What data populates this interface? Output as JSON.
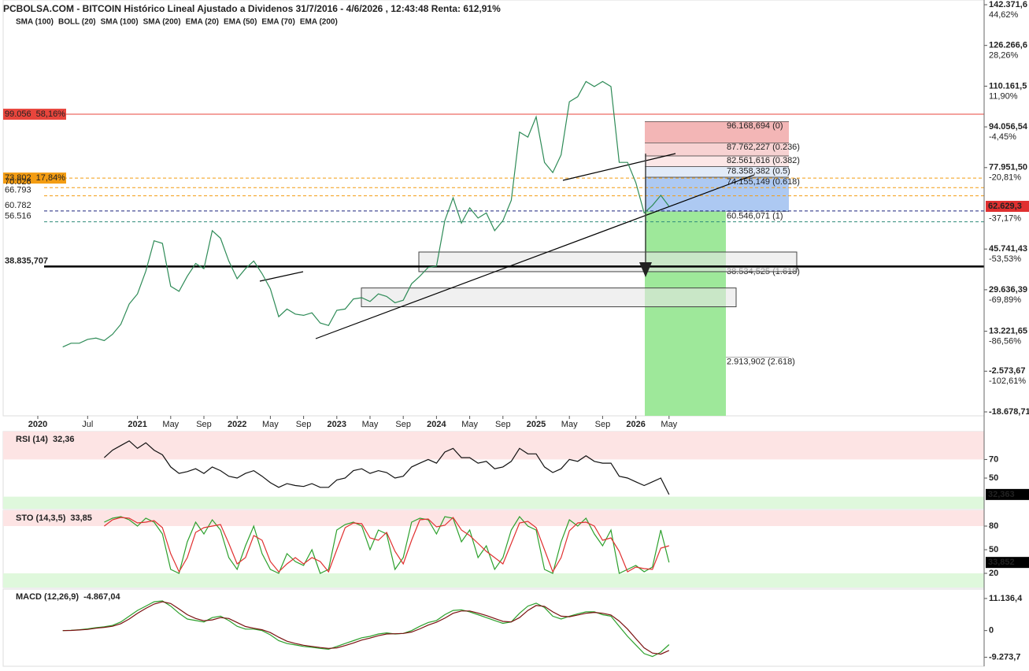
{
  "title": "PCBOLSA.COM - BITCOIN Histórico Lineal Ajustado a Dividenos 31/7/2016 - 4/6/2026 , 12:43:48 Renta: 612,91%",
  "chart_data": [
    {
      "type": "line",
      "panel": "price",
      "legend": [
        {
          "name": "SMA (100)",
          "color": "#a8d8f0"
        },
        {
          "name": "BOLL (20)",
          "color": "#d8d8d8"
        },
        {
          "name": "SMA (100)",
          "color": "#000000"
        },
        {
          "name": "SMA (200)",
          "color": "#888888"
        },
        {
          "name": "EMA (20)",
          "color": "#8a2be2"
        },
        {
          "name": "EMA (50)",
          "color": "#1a8a1a"
        },
        {
          "name": "EMA (70)",
          "color": "#e02020"
        },
        {
          "name": "EMA (200)",
          "color": "#2222aa"
        }
      ],
      "categories": [
        "2020",
        null,
        null,
        null,
        null,
        null,
        "Jul",
        null,
        null,
        null,
        null,
        null,
        "2021",
        null,
        null,
        null,
        "May",
        null,
        null,
        null,
        "Sep",
        null,
        null,
        null,
        "2022",
        null,
        null,
        null,
        "May",
        null,
        null,
        null,
        "Sep",
        null,
        null,
        null,
        "2023",
        null,
        null,
        null,
        "May",
        null,
        null,
        null,
        "Sep",
        null,
        null,
        null,
        "2024",
        null,
        null,
        null,
        "May",
        null,
        null,
        null,
        "Sep",
        null,
        null,
        null,
        "2025",
        null,
        null,
        null,
        "May",
        null,
        null,
        null,
        "Sep",
        null,
        null,
        null,
        "2026",
        null,
        null,
        null,
        "May"
      ],
      "series": [
        {
          "color": "#2e8b57",
          "values": [
            null,
            null,
            null,
            7000,
            8500,
            8500,
            10000,
            10500,
            9500,
            12000,
            16000,
            24000,
            28000,
            37000,
            49000,
            48000,
            31000,
            29000,
            35000,
            40000,
            38000,
            53000,
            50000,
            41000,
            34000,
            38000,
            41000,
            36000,
            30000,
            19000,
            22000,
            20000,
            19500,
            20500,
            16500,
            15500,
            21500,
            22000,
            26000,
            26500,
            25000,
            28000,
            27000,
            24500,
            25500,
            32000,
            35000,
            38500,
            39000,
            57000,
            66000,
            56000,
            62000,
            58000,
            60000,
            53000,
            57000,
            65000,
            92000,
            90000,
            98000,
            80000,
            76000,
            83000,
            104000,
            106000,
            112000,
            110000,
            112000,
            110000,
            80000,
            80000,
            72000,
            60000,
            63000,
            67000,
            62629.3
          ]
        }
      ],
      "ylim": [
        -20233,
        144240
      ],
      "yticks": [
        {
          "value": 142371.6,
          "label": "142.371,6"
        },
        {
          "value": 126266.6,
          "label": "126.266,6"
        },
        {
          "value": 110161.5,
          "label": "110.161,5"
        },
        {
          "value": 94056.54,
          "label": "94.056,54"
        },
        {
          "value": 77951.5,
          "label": "77.951,50"
        },
        {
          "value": 45741.43,
          "label": "45.741,43"
        },
        {
          "value": 29636.39,
          "label": "29.636,39"
        },
        {
          "value": 13221.65,
          "label": "13.221,65"
        },
        {
          "value": -2573.67,
          "label": "-2.573,67"
        },
        {
          "value": -18678.71,
          "label": "-18.678,71"
        }
      ],
      "pct_labels": [
        {
          "value": 142371.6,
          "label": "44,62%"
        },
        {
          "value": 126266.6,
          "label": "28,26%"
        },
        {
          "value": 110161.5,
          "label": "11,90%"
        },
        {
          "value": 94056.54,
          "label": "-4,45%"
        },
        {
          "value": 77951.5,
          "label": "-20,81%"
        },
        {
          "value": 61846.5,
          "label": "-37,17%"
        },
        {
          "value": 45741.43,
          "label": "-53,53%"
        },
        {
          "value": 29636.39,
          "label": "-69,89%"
        },
        {
          "value": 13221.65,
          "label": "-86,56%"
        },
        {
          "value": -2573.67,
          "label": "-102,61%"
        }
      ],
      "current": {
        "value": 62629.3,
        "label": "62.629,3",
        "color": "#e03030"
      },
      "levels": [
        {
          "value": 99056,
          "label": "99.056",
          "pct": "58,16%",
          "color": "#e8453c",
          "box": true
        },
        {
          "value": 73802,
          "label": "73.802",
          "pct": "17,84%",
          "color": "#f39c12",
          "box": true,
          "dash": true
        },
        {
          "value": 70026,
          "label": "70.026",
          "color": "#f39c12",
          "dash": true
        },
        {
          "value": 66793,
          "label": "66.793",
          "color": "#f39c12",
          "dash": true
        },
        {
          "value": 60782,
          "label": "60.782",
          "color": "#1a237e",
          "dash": true
        },
        {
          "value": 56516,
          "label": "56.516",
          "color": "#2e8b7a",
          "dash": true
        },
        {
          "value": 38835.707,
          "label": "38.835,707",
          "color": "#000000",
          "thick": true
        }
      ],
      "fib": [
        {
          "value": 96168.694,
          "label": "96.168,694 (0)",
          "color": "#e88a8a"
        },
        {
          "value": 87762.227,
          "label": "87.762,227 (0.236)",
          "color": "#e88a8a"
        },
        {
          "value": 82561.616,
          "label": "82.561,616 (0.382)",
          "color": "#e88a8a"
        },
        {
          "value": 78358.382,
          "label": "78.358,382 (0.5)",
          "color": "#3a7bd5"
        },
        {
          "value": 74155.149,
          "label": "74.155,149 (0.618)",
          "color": "#3a7bd5"
        },
        {
          "value": 60546.071,
          "label": "60.546,071 (1)",
          "color": "#4caf50"
        },
        {
          "value": 38534.525,
          "label": "38.534,525 (1.618)",
          "color": "#4caf50"
        },
        {
          "value": 2913.902,
          "label": "2.913,902 (2.618)",
          "color": "#4caf50"
        }
      ],
      "fib_zone_colors": [
        "#f1a9a9",
        "#f6caca",
        "#fbe3e3",
        "#dde8f7",
        "#9fbff0"
      ],
      "projection_color": "#9ee89a",
      "zones": [
        {
          "low": 36790,
          "high": 44560
        },
        {
          "low": 22900,
          "high": 30340
        }
      ]
    },
    {
      "type": "line",
      "panel": "rsi",
      "title": "RSI (14)",
      "value_text": "32,36",
      "ylim": [
        17,
        100
      ],
      "yticks": [
        70,
        50
      ],
      "bands": [
        {
          "from": 70,
          "to": 100,
          "color": "#fde4e4"
        },
        {
          "from": 17,
          "to": 30,
          "color": "#dff8dc"
        }
      ],
      "current": {
        "value": 32.363,
        "label": "32,363",
        "color": "#000000"
      },
      "series": [
        {
          "color": "#111111",
          "values": [
            null,
            null,
            null,
            null,
            null,
            null,
            null,
            null,
            72,
            80,
            85,
            90,
            82,
            88,
            80,
            75,
            62,
            55,
            57,
            60,
            55,
            62,
            58,
            52,
            50,
            55,
            58,
            52,
            45,
            40,
            44,
            42,
            41,
            44,
            40,
            40,
            48,
            50,
            58,
            60,
            55,
            58,
            56,
            50,
            52,
            62,
            66,
            70,
            66,
            78,
            82,
            72,
            72,
            66,
            68,
            60,
            62,
            68,
            82,
            76,
            76,
            62,
            56,
            60,
            70,
            68,
            74,
            68,
            66,
            66,
            52,
            50,
            46,
            42,
            46,
            50,
            32.363
          ]
        }
      ]
    },
    {
      "type": "line",
      "panel": "sto",
      "title": "STO (14,3,5)",
      "value_text": "33,85",
      "ylim": [
        2,
        100
      ],
      "yticks": [
        80,
        50,
        20
      ],
      "tick_colors": [
        "#d32f2f",
        "#222222",
        "#2e7d32"
      ],
      "bands": [
        {
          "from": 80,
          "to": 100,
          "color": "#fde4e4"
        },
        {
          "from": 2,
          "to": 20,
          "color": "#dff8dc"
        }
      ],
      "current": {
        "value": 33.852,
        "label": "33,852",
        "color": "#000000"
      },
      "series": [
        {
          "color": "#2ca02c",
          "values": [
            null,
            null,
            null,
            null,
            null,
            null,
            null,
            null,
            85,
            90,
            92,
            88,
            80,
            90,
            85,
            70,
            25,
            20,
            60,
            85,
            70,
            88,
            75,
            40,
            25,
            55,
            80,
            45,
            25,
            20,
            45,
            35,
            30,
            50,
            20,
            25,
            75,
            82,
            85,
            80,
            50,
            75,
            70,
            25,
            40,
            85,
            90,
            88,
            70,
            92,
            90,
            60,
            75,
            40,
            55,
            25,
            40,
            75,
            92,
            80,
            75,
            25,
            20,
            60,
            88,
            80,
            90,
            70,
            55,
            75,
            20,
            25,
            30,
            22,
            28,
            75,
            33.852
          ]
        },
        {
          "color": "#e03030",
          "values": [
            null,
            null,
            null,
            null,
            null,
            null,
            null,
            null,
            80,
            88,
            91,
            90,
            84,
            85,
            87,
            78,
            45,
            22,
            40,
            72,
            78,
            80,
            82,
            58,
            32,
            40,
            68,
            62,
            35,
            22,
            32,
            40,
            32,
            40,
            35,
            22,
            50,
            78,
            84,
            83,
            65,
            62,
            72,
            48,
            32,
            62,
            88,
            89,
            79,
            81,
            91,
            75,
            68,
            58,
            48,
            40,
            32,
            58,
            84,
            86,
            78,
            50,
            22,
            40,
            74,
            84,
            85,
            80,
            62,
            65,
            48,
            22,
            28,
            26,
            25,
            52,
            55
          ]
        }
      ]
    },
    {
      "type": "line",
      "panel": "macd",
      "title": "MACD (12,26,9)",
      "value_text": "-4.867,04",
      "ylim": [
        -12400,
        14400
      ],
      "yticks": [
        {
          "value": 11136.4,
          "label": "11.136,4"
        },
        0,
        {
          "value": -9273.7,
          "label": "-9.273,7"
        }
      ],
      "tick_colors": [
        "#d32f2f",
        "#222222",
        "#d32f2f"
      ],
      "series": [
        {
          "color": "#2ca02c",
          "values": [
            null,
            null,
            null,
            0,
            100,
            300,
            600,
            1000,
            1300,
            1800,
            3000,
            5000,
            7000,
            8500,
            10000,
            10300,
            8500,
            6000,
            4000,
            3500,
            3000,
            4500,
            5000,
            3500,
            1500,
            500,
            500,
            0,
            -1500,
            -3500,
            -4500,
            -5000,
            -5500,
            -5800,
            -6200,
            -6500,
            -5500,
            -4500,
            -3500,
            -2500,
            -2000,
            -1200,
            -800,
            -1200,
            -1000,
            0,
            1500,
            2800,
            3500,
            5500,
            7000,
            7200,
            6500,
            5500,
            4500,
            3500,
            2500,
            3000,
            6000,
            8500,
            9500,
            8000,
            5000,
            4000,
            5000,
            5800,
            6500,
            6500,
            5500,
            5000,
            1500,
            -2000,
            -5000,
            -8000,
            -9000,
            -7500,
            -4867.04
          ]
        },
        {
          "color": "#7a1010",
          "values": [
            null,
            null,
            null,
            0,
            50,
            200,
            400,
            800,
            1100,
            1500,
            2400,
            4000,
            6000,
            7700,
            9200,
            10000,
            9400,
            7500,
            5500,
            4200,
            3400,
            3700,
            4500,
            4200,
            2800,
            1400,
            800,
            300,
            -700,
            -2300,
            -3700,
            -4500,
            -5100,
            -5500,
            -5900,
            -6200,
            -6000,
            -5200,
            -4300,
            -3300,
            -2600,
            -1800,
            -1200,
            -1100,
            -1000,
            -500,
            600,
            1900,
            2900,
            4300,
            6000,
            6800,
            6800,
            6100,
            5200,
            4200,
            3200,
            3000,
            4500,
            7000,
            8700,
            8400,
            6500,
            5000,
            4800,
            5400,
            6000,
            6300,
            6000,
            5400,
            3300,
            500,
            -2800,
            -6000,
            -7800,
            -8200,
            -6900
          ]
        }
      ]
    }
  ]
}
